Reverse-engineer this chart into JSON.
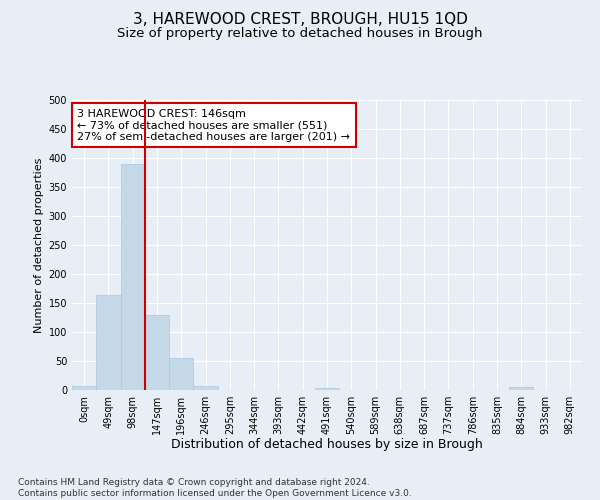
{
  "title": "3, HAREWOOD CREST, BROUGH, HU15 1QD",
  "subtitle": "Size of property relative to detached houses in Brough",
  "xlabel": "Distribution of detached houses by size in Brough",
  "ylabel": "Number of detached properties",
  "bin_labels": [
    "0sqm",
    "49sqm",
    "98sqm",
    "147sqm",
    "196sqm",
    "246sqm",
    "295sqm",
    "344sqm",
    "393sqm",
    "442sqm",
    "491sqm",
    "540sqm",
    "589sqm",
    "638sqm",
    "687sqm",
    "737sqm",
    "786sqm",
    "835sqm",
    "884sqm",
    "933sqm",
    "982sqm"
  ],
  "bar_heights": [
    7,
    163,
    390,
    130,
    55,
    7,
    0,
    0,
    0,
    0,
    4,
    0,
    0,
    0,
    0,
    0,
    0,
    0,
    5,
    0,
    0
  ],
  "bar_color": "#c5d8e8",
  "bar_edgecolor": "#a8c8e0",
  "vline_color": "#cc0000",
  "annotation_text": "3 HAREWOOD CREST: 146sqm\n← 73% of detached houses are smaller (551)\n27% of semi-detached houses are larger (201) →",
  "annotation_box_edgecolor": "#cc0000",
  "ylim": [
    0,
    500
  ],
  "yticks": [
    0,
    50,
    100,
    150,
    200,
    250,
    300,
    350,
    400,
    450,
    500
  ],
  "footer_line1": "Contains HM Land Registry data © Crown copyright and database right 2024.",
  "footer_line2": "Contains public sector information licensed under the Open Government Licence v3.0.",
  "bg_color": "#e8eef5",
  "plot_bg_color": "#e8eef5",
  "grid_color": "#ffffff",
  "title_fontsize": 11,
  "subtitle_fontsize": 9.5,
  "xlabel_fontsize": 9,
  "ylabel_fontsize": 8,
  "tick_fontsize": 7,
  "annotation_fontsize": 8,
  "footer_fontsize": 6.5
}
